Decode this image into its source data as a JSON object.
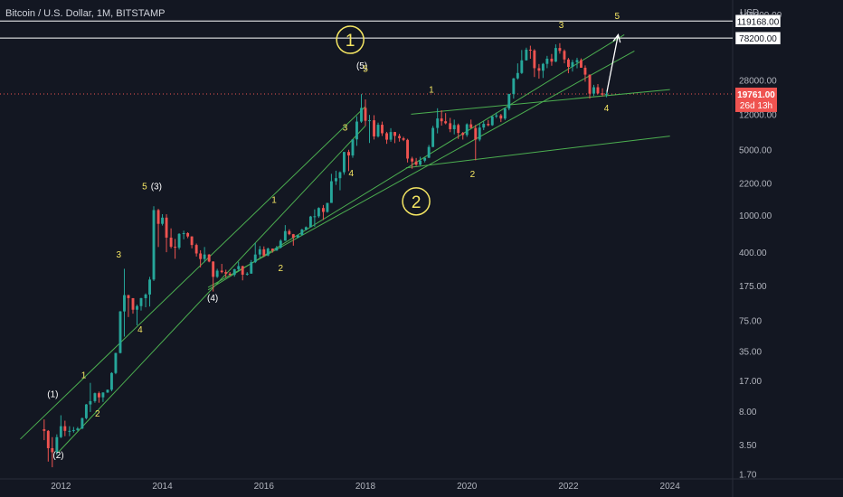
{
  "header": {
    "title": "Bitcoin / U.S. Dollar, 1M, BITSTAMP",
    "currency": "USD"
  },
  "colors": {
    "bg": "#131722",
    "up": "#26a69a",
    "down": "#ef5350",
    "channel": "#4caf50",
    "label_yellow": "#f5e663",
    "label_white": "#ffffff",
    "price_line": "#ef5350",
    "axis_text": "#b2b5be"
  },
  "chart_data": {
    "type": "candlestick",
    "scale": "log",
    "x_ticks": [
      "2012",
      "2014",
      "2016",
      "2018",
      "2020",
      "2022",
      "2024"
    ],
    "y_ticks": [
      "140000.00",
      "80000.00",
      "28000.00",
      "12000.00",
      "5000.00",
      "2200.00",
      "1000.00",
      "400.00",
      "175.00",
      "75.00",
      "35.00",
      "17.00",
      "8.00",
      "3.50",
      "1.70"
    ],
    "ylim": [
      1.5,
      200000
    ],
    "xlim": [
      2010.8,
      2025.2
    ],
    "price_badges": [
      {
        "label": "119168.00",
        "value": 119168,
        "style": "white"
      },
      {
        "label": "78200.00",
        "value": 78200,
        "style": "white"
      },
      {
        "label": "19761.00",
        "sub": "26d 13h",
        "value": 19761,
        "style": "red"
      }
    ],
    "horizontal_lines": [
      119168,
      78200
    ],
    "last_price": 19761,
    "candles": [
      [
        2011.67,
        5.1,
        6.5,
        3.9,
        4.9
      ],
      [
        2011.75,
        4.9,
        5.0,
        2.3,
        3.2
      ],
      [
        2011.83,
        3.2,
        4.2,
        2.0,
        2.9
      ],
      [
        2011.92,
        2.9,
        4.5,
        2.7,
        4.2
      ],
      [
        2012.0,
        4.2,
        7.2,
        4.1,
        5.5
      ],
      [
        2012.08,
        5.5,
        6.3,
        4.3,
        4.9
      ],
      [
        2012.17,
        4.9,
        5.5,
        4.3,
        4.9
      ],
      [
        2012.25,
        4.9,
        5.4,
        4.7,
        5.0
      ],
      [
        2012.33,
        5.0,
        5.4,
        4.9,
        5.2
      ],
      [
        2012.42,
        5.2,
        6.8,
        5.1,
        6.7
      ],
      [
        2012.5,
        6.7,
        9.5,
        6.5,
        9.4
      ],
      [
        2012.58,
        9.4,
        16.0,
        7.8,
        10.2
      ],
      [
        2012.67,
        10.2,
        12.6,
        9.8,
        12.4
      ],
      [
        2012.75,
        12.4,
        12.9,
        9.8,
        11.2
      ],
      [
        2012.83,
        11.2,
        12.7,
        10.0,
        12.6
      ],
      [
        2012.92,
        12.6,
        13.6,
        12.5,
        13.5
      ],
      [
        2013.0,
        13.5,
        20.8,
        13.0,
        20.4
      ],
      [
        2013.08,
        20.4,
        33.6,
        19.8,
        33.4
      ],
      [
        2013.17,
        33.4,
        94.0,
        33.0,
        93.0
      ],
      [
        2013.25,
        93.0,
        266,
        50,
        139
      ],
      [
        2013.33,
        139,
        140,
        81,
        129
      ],
      [
        2013.42,
        129,
        129,
        88,
        97
      ],
      [
        2013.5,
        97,
        110,
        66,
        106
      ],
      [
        2013.58,
        106,
        130,
        95,
        129
      ],
      [
        2013.67,
        129,
        145,
        103,
        141
      ],
      [
        2013.75,
        141,
        218,
        105,
        204
      ],
      [
        2013.83,
        204,
        1242,
        197,
        1130
      ],
      [
        2013.92,
        1130,
        1163,
        455,
        805
      ],
      [
        2014.0,
        805,
        1022,
        772,
        938
      ],
      [
        2014.08,
        938,
        1020,
        400,
        573
      ],
      [
        2014.17,
        573,
        720,
        440,
        458
      ],
      [
        2014.25,
        458,
        555,
        340,
        448
      ],
      [
        2014.33,
        448,
        640,
        428,
        628
      ],
      [
        2014.42,
        628,
        680,
        550,
        640
      ],
      [
        2014.5,
        640,
        655,
        565,
        590
      ],
      [
        2014.58,
        590,
        593,
        440,
        478
      ],
      [
        2014.67,
        478,
        495,
        360,
        388
      ],
      [
        2014.75,
        388,
        420,
        275,
        338
      ],
      [
        2014.83,
        338,
        455,
        312,
        378
      ],
      [
        2014.92,
        378,
        382,
        312,
        318
      ],
      [
        2015.0,
        318,
        320,
        152,
        218
      ],
      [
        2015.08,
        218,
        266,
        212,
        254
      ],
      [
        2015.17,
        254,
        300,
        238,
        245
      ],
      [
        2015.25,
        245,
        260,
        215,
        236
      ],
      [
        2015.33,
        236,
        246,
        224,
        229
      ],
      [
        2015.42,
        229,
        266,
        219,
        263
      ],
      [
        2015.5,
        263,
        316,
        252,
        284
      ],
      [
        2015.58,
        284,
        287,
        200,
        230
      ],
      [
        2015.67,
        230,
        245,
        225,
        236
      ],
      [
        2015.75,
        236,
        330,
        236,
        313
      ],
      [
        2015.83,
        313,
        502,
        306,
        378
      ],
      [
        2015.92,
        378,
        466,
        349,
        430
      ],
      [
        2016.0,
        430,
        462,
        355,
        369
      ],
      [
        2016.08,
        369,
        448,
        362,
        437
      ],
      [
        2016.17,
        437,
        438,
        396,
        416
      ],
      [
        2016.25,
        416,
        467,
        415,
        448
      ],
      [
        2016.33,
        448,
        550,
        439,
        531
      ],
      [
        2016.42,
        531,
        780,
        529,
        673
      ],
      [
        2016.5,
        673,
        704,
        609,
        624
      ],
      [
        2016.58,
        624,
        628,
        470,
        573
      ],
      [
        2016.67,
        573,
        615,
        568,
        609
      ],
      [
        2016.75,
        609,
        712,
        609,
        699
      ],
      [
        2016.83,
        699,
        755,
        683,
        742
      ],
      [
        2016.92,
        742,
        979,
        742,
        964
      ],
      [
        2017.0,
        964,
        1150,
        750,
        970
      ],
      [
        2017.08,
        970,
        1211,
        931,
        1189
      ],
      [
        2017.17,
        1189,
        1280,
        887,
        1080
      ],
      [
        2017.25,
        1080,
        1350,
        1060,
        1348
      ],
      [
        2017.33,
        1348,
        2760,
        1348,
        2300
      ],
      [
        2017.42,
        2300,
        2980,
        2100,
        2480
      ],
      [
        2017.5,
        2480,
        2930,
        1840,
        2870
      ],
      [
        2017.58,
        2870,
        4740,
        2700,
        4730
      ],
      [
        2017.67,
        4730,
        4990,
        2950,
        4340
      ],
      [
        2017.75,
        4340,
        6470,
        4100,
        6450
      ],
      [
        2017.83,
        6450,
        11400,
        5500,
        10000
      ],
      [
        2017.92,
        10000,
        19666,
        9700,
        14000
      ],
      [
        2018.0,
        14000,
        17250,
        9000,
        10200
      ],
      [
        2018.08,
        10200,
        11790,
        5900,
        10330
      ],
      [
        2018.17,
        10330,
        11700,
        6430,
        6940
      ],
      [
        2018.25,
        6940,
        9750,
        6750,
        9245
      ],
      [
        2018.33,
        9245,
        9990,
        7020,
        7500
      ],
      [
        2018.42,
        7500,
        7760,
        5780,
        6400
      ],
      [
        2018.5,
        6400,
        8500,
        6080,
        7730
      ],
      [
        2018.58,
        7730,
        7760,
        5880,
        7030
      ],
      [
        2018.67,
        7030,
        7410,
        6100,
        6630
      ],
      [
        2018.75,
        6630,
        6880,
        6180,
        6370
      ],
      [
        2018.83,
        6370,
        6550,
        3650,
        4020
      ],
      [
        2018.92,
        4020,
        4200,
        3130,
        3740
      ],
      [
        2019.0,
        3740,
        4080,
        3350,
        3460
      ],
      [
        2019.08,
        3460,
        4200,
        3380,
        3820
      ],
      [
        2019.17,
        3820,
        4100,
        3660,
        4100
      ],
      [
        2019.25,
        4100,
        5620,
        4070,
        5350
      ],
      [
        2019.33,
        5350,
        9000,
        5330,
        8550
      ],
      [
        2019.42,
        8550,
        13880,
        7480,
        10800
      ],
      [
        2019.5,
        10800,
        13200,
        9050,
        10080
      ],
      [
        2019.58,
        10080,
        12330,
        9350,
        9600
      ],
      [
        2019.67,
        9600,
        10950,
        7700,
        8290
      ],
      [
        2019.75,
        8290,
        10500,
        7300,
        9190
      ],
      [
        2019.83,
        9190,
        9520,
        6520,
        7560
      ],
      [
        2019.92,
        7560,
        7750,
        6420,
        7190
      ],
      [
        2020.0,
        7190,
        9580,
        6870,
        9350
      ],
      [
        2020.08,
        9350,
        10500,
        8500,
        8540
      ],
      [
        2020.17,
        8540,
        9200,
        3850,
        6420
      ],
      [
        2020.25,
        6420,
        9460,
        6150,
        8630
      ],
      [
        2020.33,
        8630,
        10080,
        8100,
        9450
      ],
      [
        2020.42,
        9450,
        10400,
        8900,
        9140
      ],
      [
        2020.5,
        9140,
        11440,
        9000,
        11350
      ],
      [
        2020.58,
        11350,
        12470,
        10900,
        11650
      ],
      [
        2020.67,
        11650,
        12070,
        9880,
        10780
      ],
      [
        2020.75,
        10780,
        14100,
        10400,
        13800
      ],
      [
        2020.83,
        13800,
        19850,
        13200,
        19700
      ],
      [
        2020.92,
        19700,
        29300,
        17600,
        28990
      ],
      [
        2021.0,
        28990,
        41950,
        28130,
        33110
      ],
      [
        2021.08,
        33110,
        58350,
        32300,
        45240
      ],
      [
        2021.17,
        45240,
        61780,
        44900,
        58800
      ],
      [
        2021.25,
        58800,
        64850,
        47050,
        57700
      ],
      [
        2021.33,
        57700,
        59500,
        30000,
        37300
      ],
      [
        2021.42,
        37300,
        41300,
        28800,
        35040
      ],
      [
        2021.5,
        35040,
        42400,
        29300,
        41460
      ],
      [
        2021.58,
        41460,
        50500,
        37300,
        47100
      ],
      [
        2021.67,
        47100,
        52900,
        39600,
        43800
      ],
      [
        2021.75,
        43800,
        67000,
        43300,
        61300
      ],
      [
        2021.83,
        61300,
        69000,
        53300,
        57000
      ],
      [
        2021.92,
        57000,
        59100,
        42000,
        46200
      ],
      [
        2022.0,
        46200,
        47990,
        32900,
        38500
      ],
      [
        2022.08,
        38500,
        45800,
        34300,
        43200
      ],
      [
        2022.17,
        43200,
        48200,
        37200,
        45500
      ],
      [
        2022.25,
        45500,
        47400,
        37700,
        37700
      ],
      [
        2022.33,
        37700,
        39900,
        26700,
        31800
      ],
      [
        2022.42,
        31800,
        31900,
        17600,
        19900
      ],
      [
        2022.5,
        19900,
        24700,
        18800,
        23300
      ],
      [
        2022.58,
        23300,
        25200,
        19600,
        20050
      ],
      [
        2022.67,
        20050,
        22700,
        18600,
        19430
      ],
      [
        2022.75,
        19430,
        20990,
        18200,
        19761
      ]
    ],
    "trend_lines": [
      {
        "from": [
          2011.2,
          4.0
        ],
        "to": [
          2018.0,
          14500
        ]
      },
      {
        "from": [
          2011.95,
          2.9
        ],
        "to": [
          2018.0,
          9000
        ]
      },
      {
        "from": [
          2014.9,
          158
        ],
        "to": [
          2023.1,
          85000
        ]
      },
      {
        "from": [
          2014.9,
          168
        ],
        "to": [
          2023.3,
          57000
        ]
      },
      {
        "from": [
          2018.8,
          3200
        ],
        "to": [
          2024.0,
          7000
        ]
      },
      {
        "from": [
          2018.9,
          12000
        ],
        "to": [
          2024.0,
          22000
        ]
      }
    ],
    "projection_arrow": {
      "from": [
        2022.75,
        19761
      ],
      "to": [
        2022.98,
        85000
      ]
    },
    "wave_labels": [
      {
        "text": "(1)",
        "x": 2011.84,
        "y": 11.2,
        "color": "white"
      },
      {
        "text": "(2)",
        "x": 2011.95,
        "y": 2.5,
        "color": "white"
      },
      {
        "text": "1",
        "x": 2012.45,
        "y": 18.0,
        "color": "yellow"
      },
      {
        "text": "2",
        "x": 2012.72,
        "y": 7.0,
        "color": "yellow"
      },
      {
        "text": "3",
        "x": 2013.14,
        "y": 350,
        "color": "yellow"
      },
      {
        "text": "4",
        "x": 2013.56,
        "y": 55,
        "color": "yellow"
      },
      {
        "text": "5",
        "x": 2013.65,
        "y": 1880,
        "color": "yellow"
      },
      {
        "text": "(3)",
        "x": 2013.88,
        "y": 1880,
        "color": "white"
      },
      {
        "text": "(4)",
        "x": 2014.99,
        "y": 120,
        "color": "white"
      },
      {
        "text": "1",
        "x": 2016.2,
        "y": 1350,
        "color": "yellow"
      },
      {
        "text": "2",
        "x": 2016.33,
        "y": 250,
        "color": "yellow"
      },
      {
        "text": "3",
        "x": 2017.6,
        "y": 8000,
        "color": "yellow"
      },
      {
        "text": "4",
        "x": 2017.72,
        "y": 2600,
        "color": "yellow"
      },
      {
        "text": "(5)",
        "x": 2017.93,
        "y": 37000,
        "color": "white"
      },
      {
        "text": "5",
        "x": 2018.0,
        "y": 34000,
        "color": "yellow"
      },
      {
        "text": "1",
        "x": 2019.3,
        "y": 20500,
        "color": "yellow"
      },
      {
        "text": "2",
        "x": 2020.11,
        "y": 2550,
        "color": "yellow"
      },
      {
        "text": "3",
        "x": 2021.86,
        "y": 100000,
        "color": "yellow"
      },
      {
        "text": "5",
        "x": 2022.96,
        "y": 125000,
        "color": "yellow"
      },
      {
        "text": "4",
        "x": 2022.75,
        "y": 13000,
        "color": "yellow"
      }
    ],
    "circled_labels": [
      {
        "text": "1",
        "x": 2017.7,
        "y": 75000
      },
      {
        "text": "2",
        "x": 2019.0,
        "y": 1400
      }
    ]
  }
}
